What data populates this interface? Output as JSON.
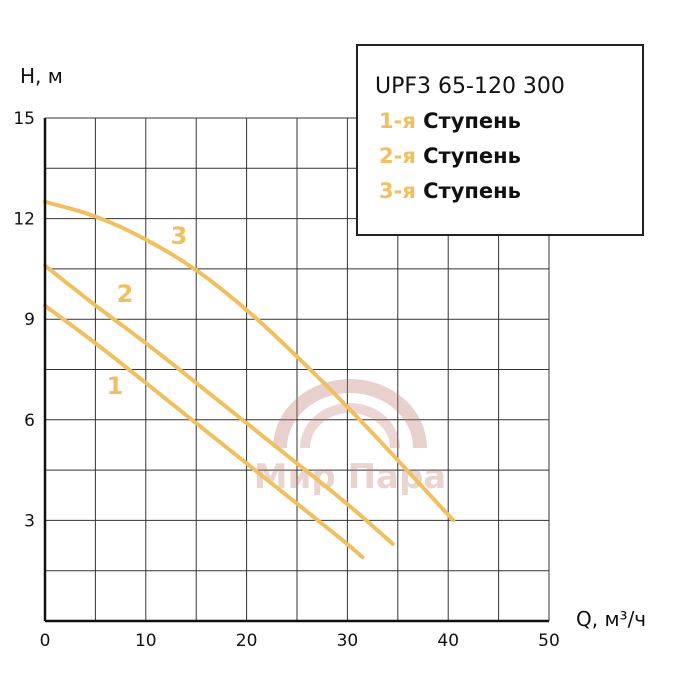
{
  "chart_data": {
    "type": "line",
    "title": "UPF3 65-120 300",
    "xlabel": "Q, м³/ч",
    "ylabel": "H, м",
    "xlim": [
      0,
      50
    ],
    "ylim": [
      0,
      15
    ],
    "x_ticks": [
      "0",
      "10",
      "20",
      "30",
      "40",
      "50"
    ],
    "y_ticks": [
      "3",
      "6",
      "9",
      "12",
      "15"
    ],
    "grid": true,
    "legend_position": "top-right",
    "accent_color": "#F0C060",
    "series": [
      {
        "label_number": "1",
        "legend_prefix": "1-я",
        "legend_suffix": "Ступень",
        "x": [
          0,
          5,
          10,
          15,
          20,
          25,
          30,
          31.5
        ],
        "y": [
          9.4,
          8.3,
          7.1,
          5.9,
          4.7,
          3.5,
          2.3,
          1.9
        ]
      },
      {
        "label_number": "2",
        "legend_prefix": "2-я",
        "legend_suffix": "Ступень",
        "x": [
          0,
          5,
          10,
          15,
          20,
          25,
          30,
          34.5
        ],
        "y": [
          10.6,
          9.4,
          8.3,
          7.1,
          5.9,
          4.7,
          3.5,
          2.3
        ]
      },
      {
        "label_number": "3",
        "legend_prefix": "3-я",
        "legend_suffix": "Ступень",
        "x": [
          0,
          5,
          10,
          15,
          20,
          25,
          30,
          35,
          40.5
        ],
        "y": [
          12.5,
          12.1,
          11.4,
          10.5,
          9.3,
          7.9,
          6.4,
          4.8,
          3.0
        ]
      }
    ],
    "watermark": "Мир Пара"
  }
}
